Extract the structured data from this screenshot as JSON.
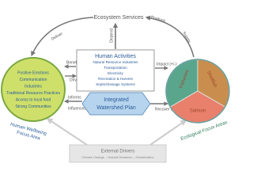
{
  "top_node": {
    "label": "Ecosystem Services"
  },
  "edges": {
    "deliver": "Deliver",
    "produce": "Produce",
    "supply": "Supply",
    "depend": "Depend",
    "benefit": "Benefit",
    "drives": "Drives",
    "impact": "Impact (+/-)",
    "informs": "Informs",
    "influences": "Influences",
    "recover": "Recover & Protect"
  },
  "human_activities": {
    "title": "Human Activities",
    "items": [
      "Natural Resource Industries",
      "Transportation",
      "Electricity",
      "Recreation & Harvest",
      "Septic/Sewage Systems"
    ]
  },
  "wellbeing": {
    "items": [
      "Positive Emotions",
      "Communication",
      "Industries",
      "Traditional Resource Practices",
      "Access to local food",
      "Strong Communities"
    ],
    "label": [
      "Human Wellbeing",
      "Focus Area"
    ]
  },
  "ecological": {
    "segments": [
      "Fisheries",
      "Shellfish",
      "Salmon"
    ],
    "label": [
      "Ecological Focus Areas"
    ]
  },
  "plan": {
    "label": [
      "Integrated",
      "Watershed Plan"
    ]
  },
  "external": {
    "title": "External Drivers",
    "subtitle": "Climate Change – Natural Disasters – Globalization"
  }
}
